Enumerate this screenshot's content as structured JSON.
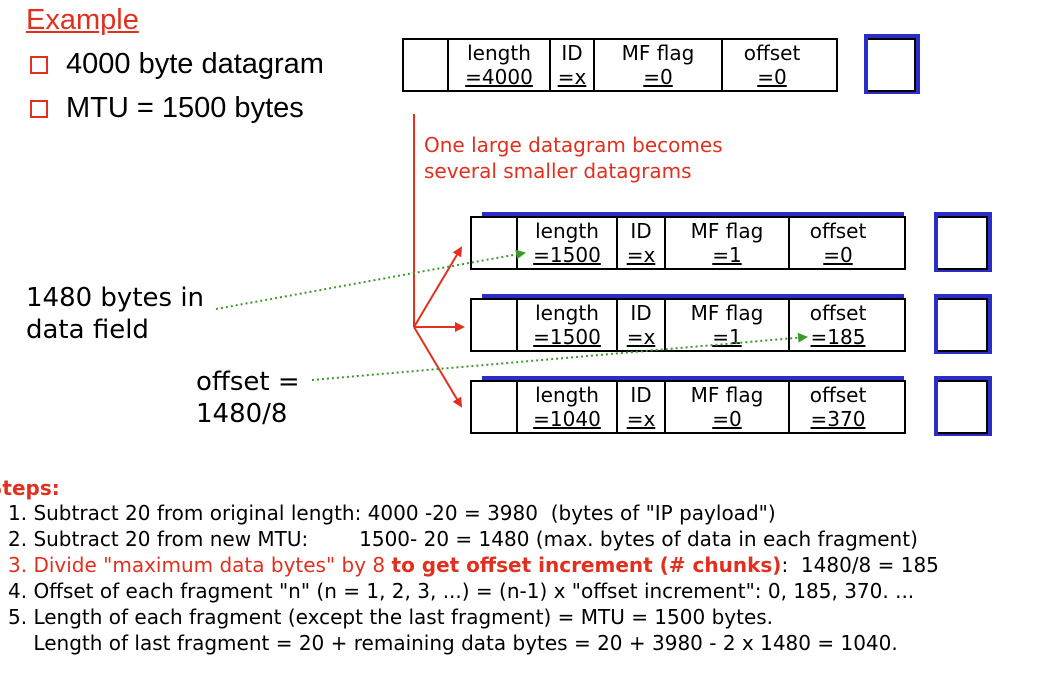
{
  "title": "Example",
  "bullets": [
    "4000 byte datagram",
    "MTU = 1500 bytes"
  ],
  "note": [
    "One large datagram becomes",
    "several smaller datagrams"
  ],
  "labels": {
    "data_field": [
      "1480 bytes in",
      "data field"
    ],
    "offset_calc": [
      "offset =",
      "1480/8"
    ]
  },
  "datagrams": [
    {
      "length": "length",
      "length_val": "=4000",
      "id": "ID",
      "id_val": "=x",
      "mf": "MF flag",
      "mf_val": "=0",
      "offset": "offset",
      "offset_val": "=0"
    },
    {
      "length": "length",
      "length_val": "=1500",
      "id": "ID",
      "id_val": "=x",
      "mf": "MF flag",
      "mf_val": "=1",
      "offset": "offset",
      "offset_val": "=0"
    },
    {
      "length": "length",
      "length_val": "=1500",
      "id": "ID",
      "id_val": "=x",
      "mf": "MF flag",
      "mf_val": "=1",
      "offset": "offset",
      "offset_val": "=185"
    },
    {
      "length": "length",
      "length_val": "=1040",
      "id": "ID",
      "id_val": "=x",
      "mf": "MF flag",
      "mf_val": "=0",
      "offset": "offset",
      "offset_val": "=370"
    }
  ],
  "steps_title": "Steps:",
  "steps": {
    "s1": "1. Subtract 20 from original length: 4000 -20 = 3980  (bytes of \"IP payload\")",
    "s2": "2. Subtract 20 from new MTU:        1500- 20 = 1480 (max. bytes of data in each fragment)",
    "s3_a": "3. Divide \"maximum data bytes\" by 8 ",
    "s3_b": "to get offset increment (# chunks)",
    "s3_c": ":  1480/8 = 185",
    "s4": "4. Offset of each fragment \"n\" (n = 1, 2, 3, ...) = (n-1) x \"offset increment\": 0, 185, 370. ...",
    "s5a": "5. Length of each fragment (except the last fragment) = MTU = 1500 bytes.",
    "s5b": "    Length of last fragment = 20 + remaining data bytes = 20 + 3980 - 2 x 1480 = 1040."
  },
  "colors": {
    "accent": "#e1301f",
    "shadow": "#2a2ec7",
    "dotted": "#3a9a2a"
  }
}
